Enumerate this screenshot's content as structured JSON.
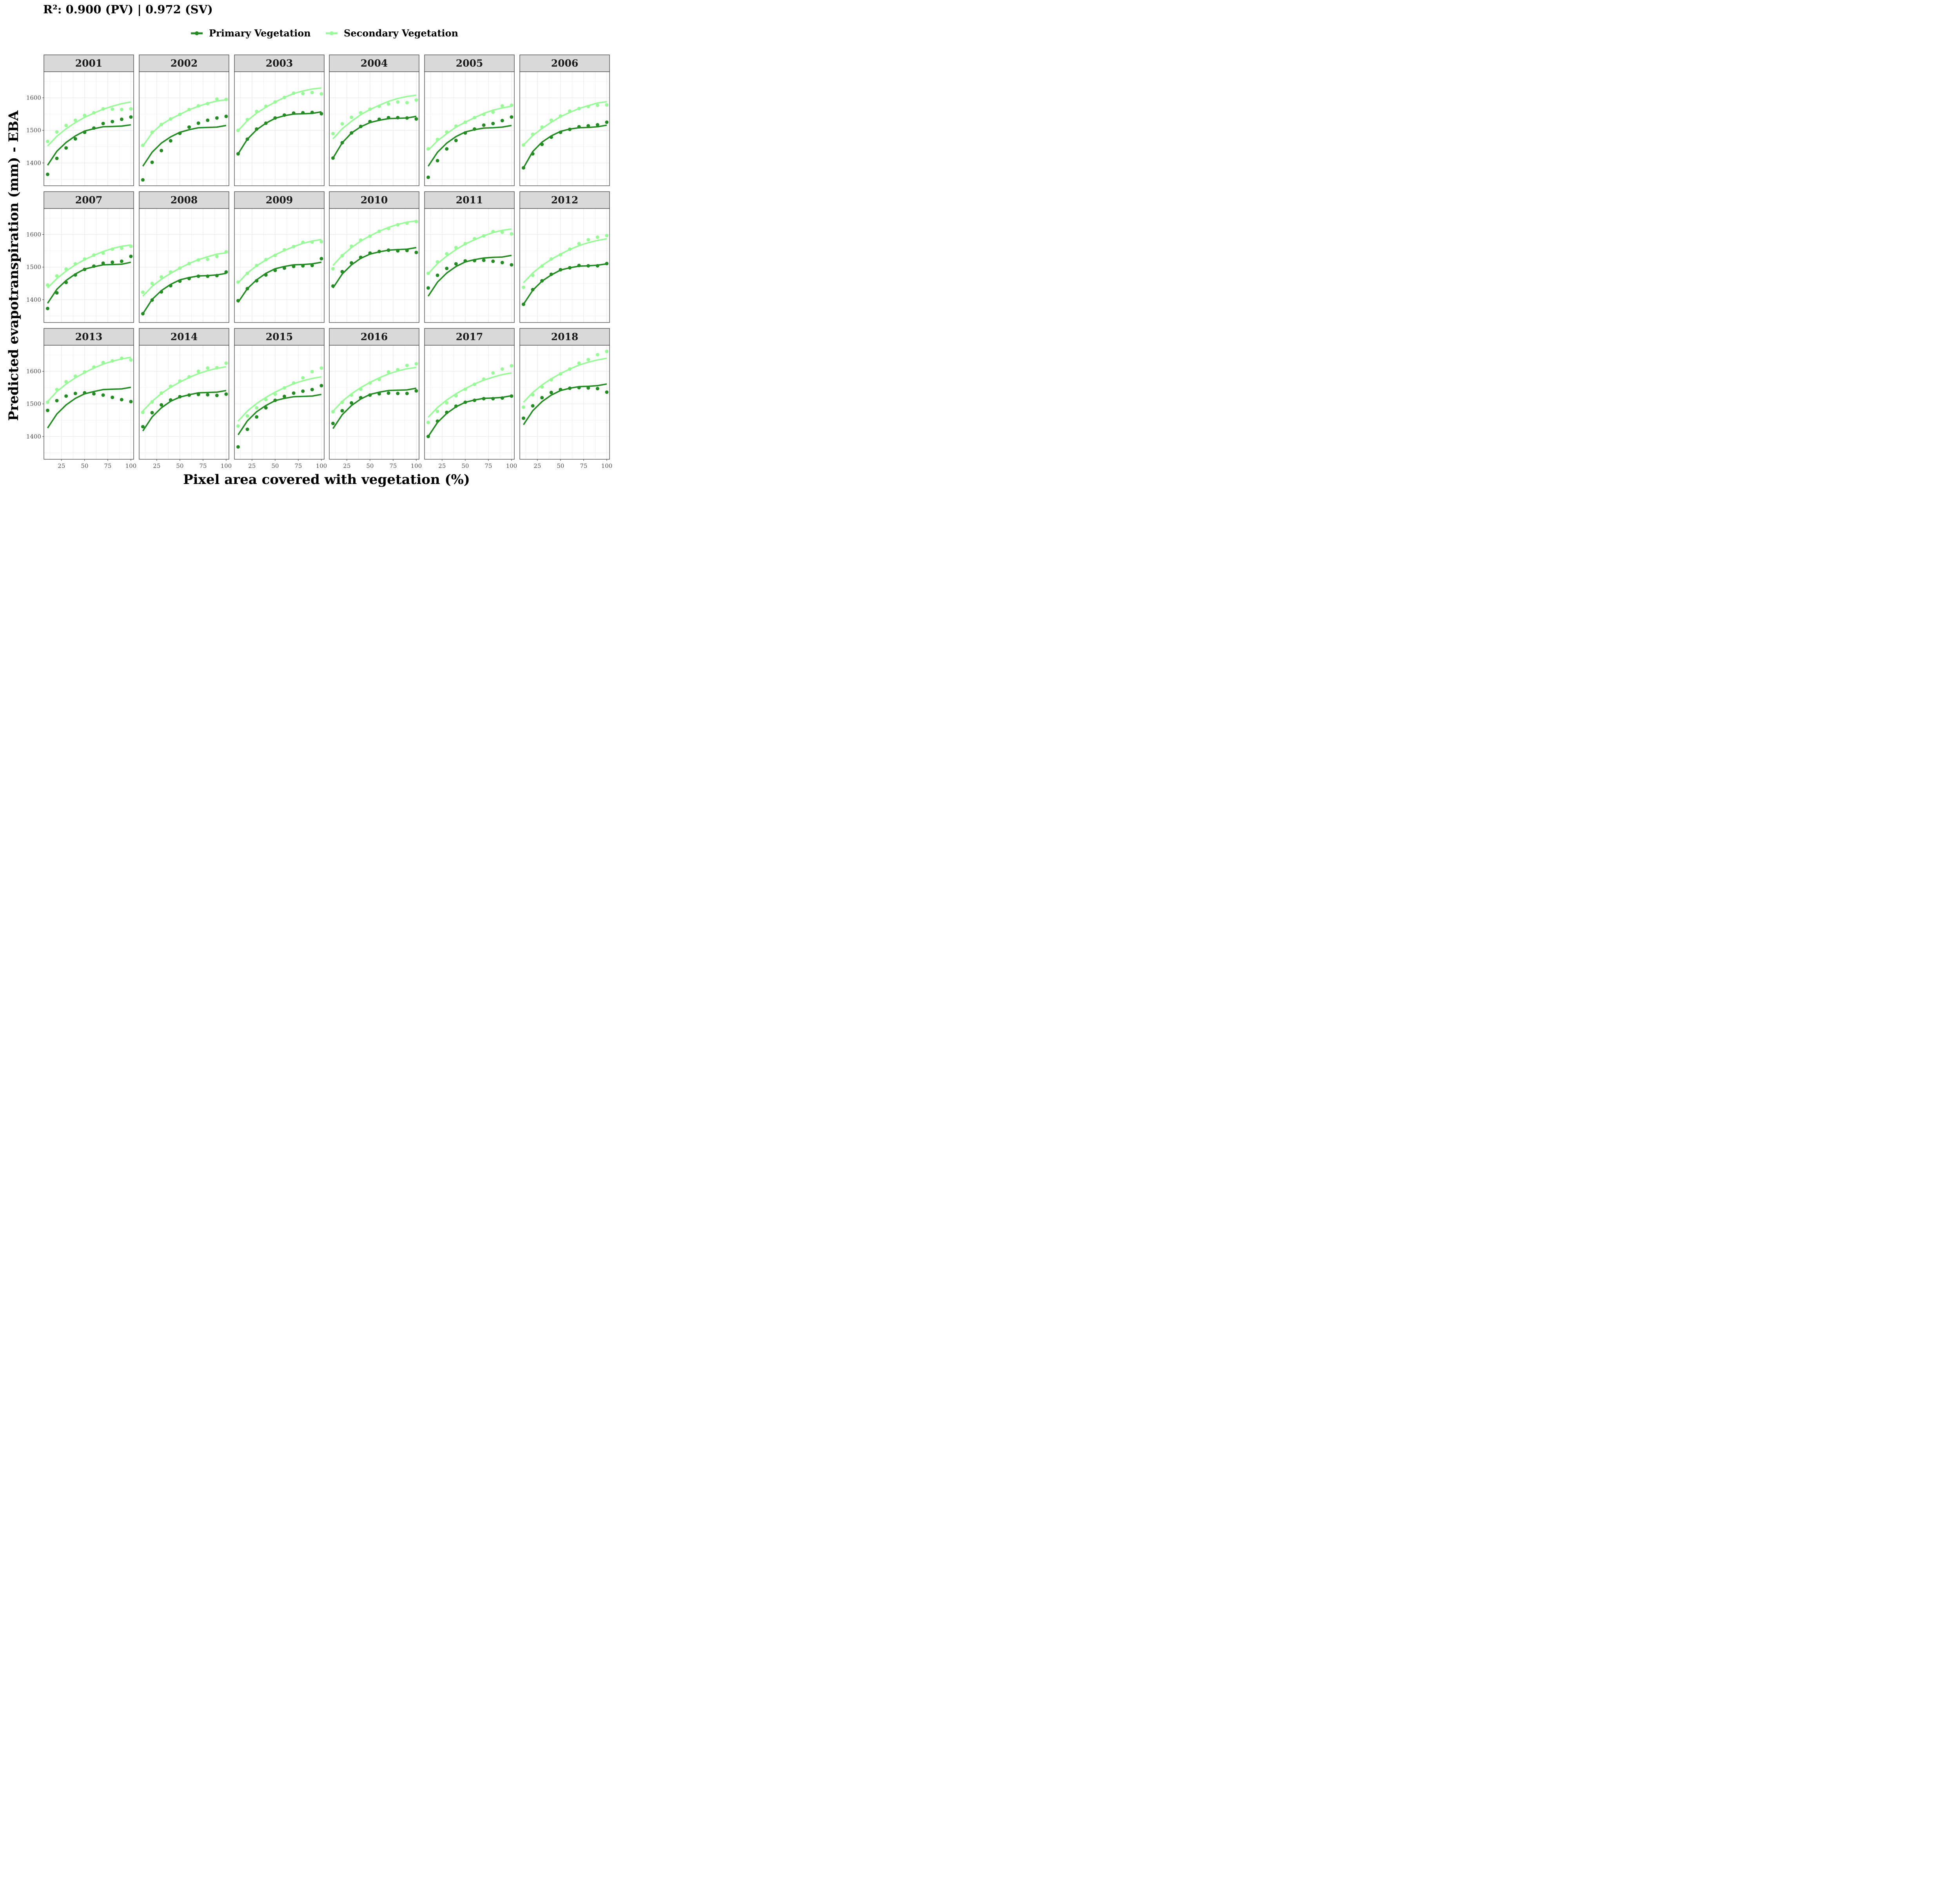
{
  "chart_data": {
    "type": "line",
    "title": "R²: 0.900 (PV) | 0.972 (SV)",
    "xlabel": "Pixel area covered with vegetation (%)",
    "ylabel": "Predicted evapotranspiration (mm) - EBA",
    "x": [
      10,
      20,
      30,
      40,
      50,
      60,
      70,
      80,
      90,
      100
    ],
    "xlim": [
      6,
      103
    ],
    "ylim": [
      1330,
      1680
    ],
    "xticks": [
      25,
      50,
      75,
      100
    ],
    "yticks": [
      1400,
      1500,
      1600
    ],
    "grid": true,
    "legend": {
      "position": "top",
      "entries": [
        "Primary Vegetation",
        "Secondary Vegetation"
      ]
    },
    "colors": {
      "pv": "#228B22",
      "sv": "#98FB98",
      "strip": "#d9d9d9",
      "grid": "#ebebeb",
      "border": "#333333"
    },
    "panels": [
      {
        "label": "2001",
        "pv_points": [
          1365,
          1414,
          1446,
          1474,
          1494,
          1507,
          1521,
          1527,
          1534,
          1541
        ],
        "sv_points": [
          1466,
          1495,
          1515,
          1531,
          1546,
          1554,
          1566,
          1565,
          1564,
          1566
        ],
        "pv_fit": [
          1393,
          1436,
          1463,
          1483,
          1498,
          1505,
          1511,
          1512,
          1513,
          1517
        ],
        "sv_fit": [
          1452,
          1482,
          1505,
          1524,
          1540,
          1553,
          1565,
          1574,
          1582,
          1587
        ]
      },
      {
        "label": "2002",
        "pv_points": [
          1348,
          1402,
          1438,
          1468,
          1491,
          1510,
          1522,
          1531,
          1538,
          1543
        ],
        "sv_points": [
          1454,
          1494,
          1518,
          1535,
          1549,
          1564,
          1575,
          1582,
          1596,
          1595
        ],
        "pv_fit": [
          1390,
          1433,
          1461,
          1480,
          1494,
          1502,
          1508,
          1509,
          1510,
          1515
        ],
        "sv_fit": [
          1452,
          1492,
          1518,
          1535,
          1549,
          1563,
          1574,
          1583,
          1590,
          1594
        ]
      },
      {
        "label": "2003",
        "pv_points": [
          1428,
          1473,
          1504,
          1522,
          1538,
          1547,
          1553,
          1554,
          1555,
          1551
        ],
        "sv_points": [
          1500,
          1533,
          1558,
          1574,
          1587,
          1601,
          1614,
          1613,
          1616,
          1612
        ],
        "pv_fit": [
          1428,
          1473,
          1502,
          1522,
          1537,
          1545,
          1550,
          1551,
          1552,
          1557
        ],
        "sv_fit": [
          1499,
          1530,
          1553,
          1571,
          1587,
          1601,
          1613,
          1621,
          1627,
          1630
        ]
      },
      {
        "label": "2004",
        "pv_points": [
          1415,
          1462,
          1492,
          1512,
          1527,
          1534,
          1539,
          1539,
          1538,
          1535
        ],
        "sv_points": [
          1490,
          1520,
          1540,
          1554,
          1565,
          1574,
          1581,
          1587,
          1585,
          1593
        ],
        "pv_fit": [
          1415,
          1462,
          1492,
          1511,
          1524,
          1531,
          1536,
          1537,
          1538,
          1543
        ],
        "sv_fit": [
          1474,
          1505,
          1528,
          1548,
          1564,
          1577,
          1589,
          1598,
          1604,
          1608
        ]
      },
      {
        "label": "2005",
        "pv_points": [
          1356,
          1407,
          1443,
          1469,
          1492,
          1504,
          1516,
          1521,
          1530,
          1541
        ],
        "sv_points": [
          1443,
          1472,
          1495,
          1513,
          1525,
          1539,
          1549,
          1556,
          1575,
          1577
        ],
        "pv_fit": [
          1390,
          1433,
          1461,
          1481,
          1495,
          1502,
          1507,
          1508,
          1510,
          1515
        ],
        "sv_fit": [
          1439,
          1468,
          1490,
          1510,
          1525,
          1539,
          1552,
          1562,
          1569,
          1574
        ]
      },
      {
        "label": "2006",
        "pv_points": [
          1385,
          1428,
          1457,
          1479,
          1494,
          1503,
          1511,
          1514,
          1517,
          1525
        ],
        "sv_points": [
          1455,
          1488,
          1510,
          1531,
          1544,
          1559,
          1567,
          1573,
          1577,
          1578
        ],
        "pv_fit": [
          1385,
          1435,
          1464,
          1483,
          1497,
          1504,
          1508,
          1509,
          1511,
          1516
        ],
        "sv_fit": [
          1455,
          1484,
          1506,
          1525,
          1542,
          1555,
          1567,
          1576,
          1584,
          1588
        ]
      },
      {
        "label": "2007",
        "pv_points": [
          1373,
          1421,
          1453,
          1476,
          1493,
          1503,
          1512,
          1515,
          1518,
          1533
        ],
        "sv_points": [
          1445,
          1473,
          1494,
          1510,
          1525,
          1537,
          1543,
          1555,
          1558,
          1564
        ],
        "pv_fit": [
          1389,
          1432,
          1459,
          1479,
          1494,
          1501,
          1507,
          1508,
          1509,
          1515
        ],
        "sv_fit": [
          1436,
          1465,
          1488,
          1507,
          1523,
          1536,
          1548,
          1557,
          1564,
          1568
        ]
      },
      {
        "label": "2008",
        "pv_points": [
          1357,
          1399,
          1424,
          1443,
          1457,
          1465,
          1472,
          1472,
          1474,
          1485
        ],
        "sv_points": [
          1423,
          1450,
          1470,
          1485,
          1497,
          1511,
          1522,
          1524,
          1533,
          1547
        ],
        "pv_fit": [
          1357,
          1401,
          1428,
          1447,
          1461,
          1468,
          1473,
          1474,
          1476,
          1481
        ],
        "sv_fit": [
          1411,
          1441,
          1463,
          1481,
          1497,
          1511,
          1523,
          1532,
          1540,
          1544
        ]
      },
      {
        "label": "2009",
        "pv_points": [
          1397,
          1434,
          1458,
          1476,
          1490,
          1497,
          1502,
          1504,
          1505,
          1526
        ],
        "sv_points": [
          1454,
          1481,
          1505,
          1523,
          1536,
          1553,
          1563,
          1576,
          1577,
          1578
        ],
        "pv_fit": [
          1392,
          1434,
          1461,
          1481,
          1495,
          1502,
          1507,
          1508,
          1510,
          1515
        ],
        "sv_fit": [
          1452,
          1482,
          1504,
          1522,
          1538,
          1551,
          1563,
          1573,
          1580,
          1585
        ]
      },
      {
        "label": "2010",
        "pv_points": [
          1442,
          1486,
          1513,
          1530,
          1543,
          1548,
          1552,
          1550,
          1551,
          1545
        ],
        "sv_points": [
          1495,
          1535,
          1564,
          1583,
          1595,
          1610,
          1619,
          1630,
          1635,
          1640
        ],
        "pv_fit": [
          1436,
          1479,
          1507,
          1527,
          1540,
          1547,
          1552,
          1554,
          1555,
          1560
        ],
        "sv_fit": [
          1505,
          1536,
          1560,
          1580,
          1596,
          1610,
          1622,
          1631,
          1638,
          1642
        ]
      },
      {
        "label": "2011",
        "pv_points": [
          1436,
          1475,
          1496,
          1510,
          1519,
          1520,
          1521,
          1518,
          1514,
          1507
        ],
        "sv_points": [
          1481,
          1516,
          1541,
          1560,
          1572,
          1587,
          1596,
          1609,
          1607,
          1602
        ],
        "pv_fit": [
          1411,
          1454,
          1482,
          1502,
          1516,
          1523,
          1528,
          1530,
          1531,
          1536
        ],
        "sv_fit": [
          1480,
          1511,
          1534,
          1554,
          1571,
          1584,
          1596,
          1606,
          1613,
          1617
        ]
      },
      {
        "label": "2012",
        "pv_points": [
          1386,
          1431,
          1458,
          1478,
          1492,
          1498,
          1505,
          1504,
          1504,
          1511
        ],
        "sv_points": [
          1438,
          1475,
          1503,
          1525,
          1538,
          1555,
          1572,
          1584,
          1592,
          1597
        ],
        "pv_fit": [
          1386,
          1429,
          1457,
          1476,
          1491,
          1498,
          1503,
          1504,
          1506,
          1510
        ],
        "sv_fit": [
          1452,
          1482,
          1505,
          1524,
          1540,
          1554,
          1566,
          1575,
          1582,
          1587
        ]
      },
      {
        "label": "2013",
        "pv_points": [
          1480,
          1510,
          1524,
          1532,
          1534,
          1531,
          1527,
          1520,
          1513,
          1507
        ],
        "sv_points": [
          1505,
          1544,
          1568,
          1585,
          1598,
          1613,
          1627,
          1632,
          1640,
          1635
        ],
        "pv_fit": [
          1426,
          1469,
          1497,
          1517,
          1531,
          1538,
          1544,
          1545,
          1546,
          1551
        ],
        "sv_fit": [
          1507,
          1538,
          1561,
          1580,
          1596,
          1610,
          1622,
          1631,
          1638,
          1643
        ]
      },
      {
        "label": "2014",
        "pv_points": [
          1430,
          1473,
          1497,
          1512,
          1522,
          1527,
          1529,
          1528,
          1526,
          1530
        ],
        "sv_points": [
          1474,
          1506,
          1533,
          1554,
          1570,
          1583,
          1600,
          1610,
          1611,
          1625
        ],
        "pv_fit": [
          1417,
          1460,
          1488,
          1508,
          1521,
          1528,
          1534,
          1535,
          1536,
          1541
        ],
        "sv_fit": [
          1478,
          1508,
          1532,
          1551,
          1567,
          1581,
          1593,
          1602,
          1609,
          1614
        ]
      },
      {
        "label": "2015",
        "pv_points": [
          1368,
          1422,
          1460,
          1488,
          1511,
          1523,
          1533,
          1539,
          1544,
          1556
        ],
        "sv_points": [
          1432,
          1463,
          1488,
          1513,
          1530,
          1549,
          1564,
          1580,
          1599,
          1610
        ],
        "pv_fit": [
          1405,
          1448,
          1476,
          1495,
          1510,
          1517,
          1522,
          1523,
          1524,
          1529
        ],
        "sv_fit": [
          1447,
          1478,
          1501,
          1520,
          1536,
          1550,
          1562,
          1571,
          1578,
          1583
        ]
      },
      {
        "label": "2016",
        "pv_points": [
          1440,
          1479,
          1503,
          1519,
          1527,
          1531,
          1533,
          1532,
          1532,
          1540
        ],
        "sv_points": [
          1476,
          1505,
          1527,
          1545,
          1564,
          1575,
          1598,
          1605,
          1618,
          1623
        ],
        "pv_fit": [
          1424,
          1467,
          1495,
          1515,
          1529,
          1536,
          1541,
          1542,
          1543,
          1548
        ],
        "sv_fit": [
          1477,
          1508,
          1531,
          1550,
          1566,
          1580,
          1592,
          1601,
          1608,
          1612
        ]
      },
      {
        "label": "2017",
        "pv_points": [
          1400,
          1447,
          1474,
          1493,
          1505,
          1511,
          1516,
          1516,
          1518,
          1524
        ],
        "sv_points": [
          1443,
          1477,
          1503,
          1525,
          1545,
          1560,
          1576,
          1595,
          1607,
          1617
        ],
        "pv_fit": [
          1400,
          1443,
          1471,
          1491,
          1505,
          1512,
          1517,
          1518,
          1520,
          1525
        ],
        "sv_fit": [
          1459,
          1489,
          1512,
          1531,
          1547,
          1561,
          1573,
          1582,
          1590,
          1595
        ]
      },
      {
        "label": "2018",
        "pv_points": [
          1456,
          1494,
          1519,
          1535,
          1544,
          1548,
          1550,
          1549,
          1547,
          1536
        ],
        "sv_points": [
          1490,
          1528,
          1552,
          1574,
          1592,
          1607,
          1625,
          1636,
          1651,
          1661
        ],
        "pv_fit": [
          1436,
          1479,
          1507,
          1527,
          1541,
          1548,
          1553,
          1554,
          1556,
          1561
        ],
        "sv_fit": [
          1505,
          1535,
          1558,
          1577,
          1593,
          1607,
          1619,
          1628,
          1635,
          1640
        ]
      }
    ]
  }
}
